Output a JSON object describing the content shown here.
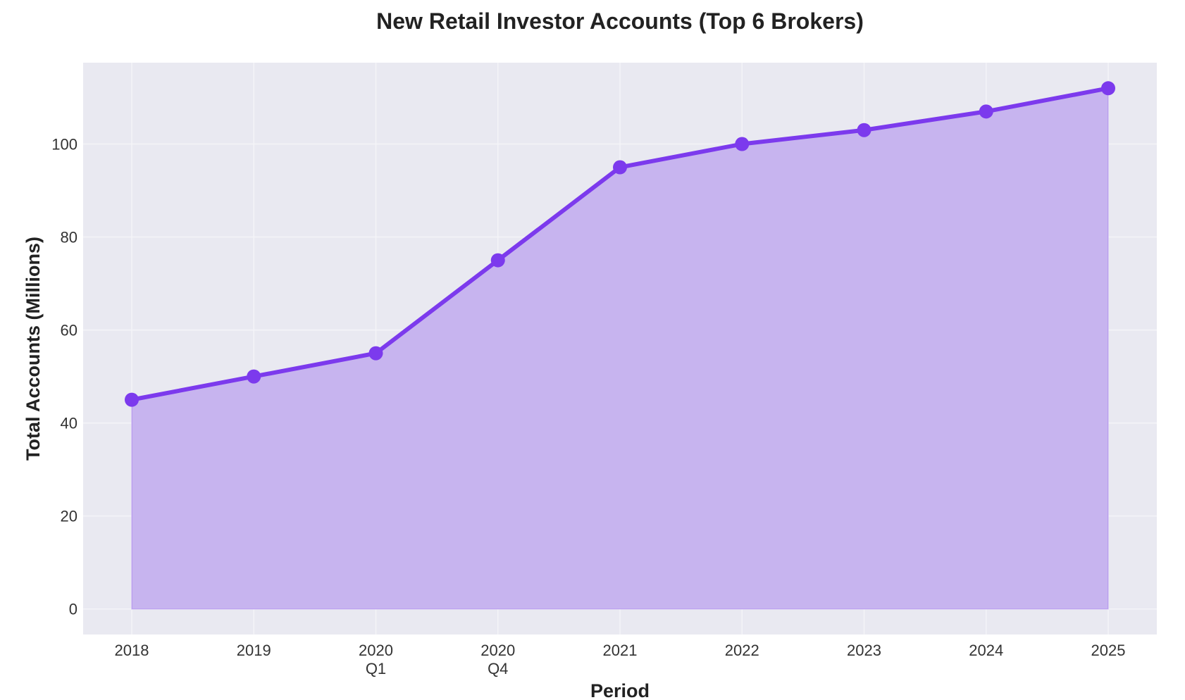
{
  "chart_data": {
    "type": "area",
    "title": "New Retail Investor Accounts (Top 6 Brokers)",
    "xlabel": "Period",
    "ylabel": "Total Accounts (Millions)",
    "categories": [
      [
        "2018"
      ],
      [
        "2019"
      ],
      [
        "2020",
        "Q1"
      ],
      [
        "2020",
        "Q4"
      ],
      [
        "2021"
      ],
      [
        "2022"
      ],
      [
        "2023"
      ],
      [
        "2024"
      ],
      [
        "2025"
      ]
    ],
    "values": [
      45,
      50,
      55,
      75,
      95,
      100,
      103,
      107,
      112
    ],
    "ylim": [
      -5.5,
      117.5
    ],
    "yticks": [
      0,
      20,
      40,
      60,
      80,
      100
    ],
    "grid": true,
    "colors": {
      "line": "#7c3aed",
      "fill": "#c7b4ef",
      "background": "#e9e9f1",
      "grid": "#f4f4f8"
    }
  }
}
